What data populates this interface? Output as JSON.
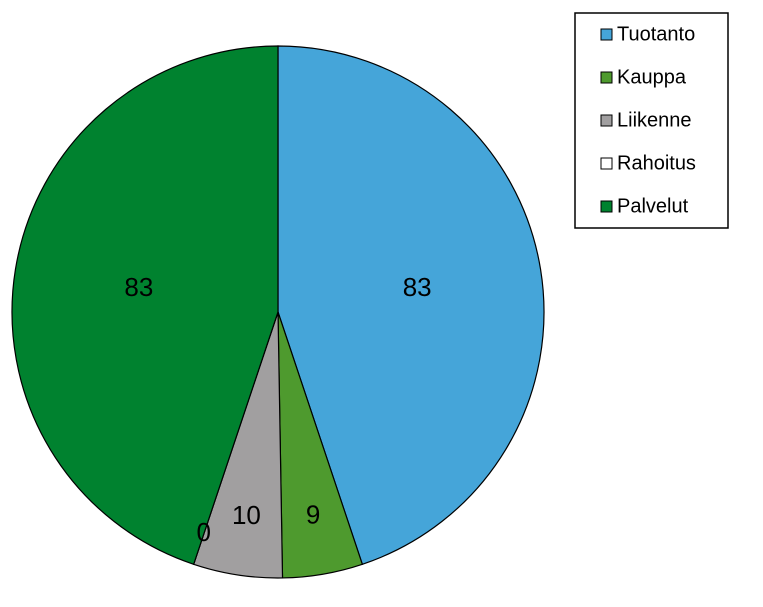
{
  "chart_data": {
    "type": "pie",
    "categories": [
      "Tuotanto",
      "Kauppa",
      "Liikenne",
      "Rahoitus",
      "Palvelut"
    ],
    "values": [
      83,
      9,
      10,
      0,
      83
    ],
    "colors": [
      "#45a5d9",
      "#4e9a2e",
      "#a19fa0",
      "#ffffff",
      "#00822f"
    ]
  }
}
